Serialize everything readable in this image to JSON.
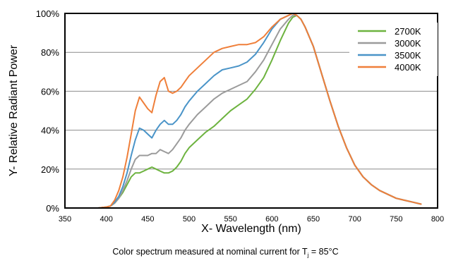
{
  "chart_data": {
    "type": "line",
    "xlabel": "X- Wavelength (nm)",
    "ylabel": "Y- Relative Radiant Power",
    "xlim": [
      350,
      800
    ],
    "ylim": [
      0,
      100
    ],
    "x_ticks": [
      "350",
      "400",
      "450",
      "500",
      "550",
      "600",
      "650",
      "700",
      "750",
      "800"
    ],
    "y_ticks": [
      "0%",
      "20%",
      "40%",
      "60%",
      "80%",
      "100%"
    ],
    "grid": "horizontal",
    "legend_position": "top-right",
    "series": [
      {
        "name": "2700K",
        "color": "#6db33f",
        "x": [
          380,
          390,
          400,
          405,
          410,
          415,
          420,
          425,
          430,
          435,
          440,
          445,
          450,
          455,
          460,
          465,
          470,
          475,
          480,
          485,
          490,
          495,
          500,
          510,
          520,
          530,
          540,
          550,
          560,
          570,
          580,
          590,
          600,
          610,
          620,
          625,
          630,
          635,
          640,
          650,
          660,
          670,
          680,
          690,
          700,
          710,
          720,
          730,
          740,
          750,
          760,
          770,
          780
        ],
        "y": [
          0,
          0,
          0.5,
          1,
          2.5,
          5,
          8,
          12,
          16,
          18,
          18,
          19,
          20,
          21,
          20,
          19,
          18,
          18,
          19,
          21,
          24,
          28,
          31,
          35,
          39,
          42,
          46,
          50,
          53,
          56,
          61,
          67,
          76,
          86,
          95,
          98,
          99,
          97,
          93,
          83,
          69,
          55,
          42,
          31,
          22,
          16,
          12,
          9,
          7,
          5,
          4,
          3,
          2
        ]
      },
      {
        "name": "3000K",
        "color": "#9b9b9b",
        "x": [
          380,
          390,
          400,
          405,
          410,
          415,
          420,
          425,
          430,
          435,
          440,
          445,
          450,
          455,
          460,
          465,
          470,
          475,
          480,
          485,
          490,
          495,
          500,
          510,
          520,
          530,
          540,
          550,
          560,
          570,
          580,
          590,
          600,
          610,
          620,
          625,
          630,
          635,
          640,
          650,
          660,
          670,
          680,
          690,
          700,
          710,
          720,
          730,
          740,
          750,
          760,
          770,
          780
        ],
        "y": [
          0,
          0,
          0.5,
          1,
          2.5,
          5,
          9,
          14,
          20,
          25,
          27,
          27,
          27,
          28,
          28,
          30,
          29,
          28,
          30,
          33,
          36,
          40,
          43,
          48,
          52,
          56,
          59,
          61,
          63,
          65,
          70,
          76,
          84,
          92,
          97,
          99,
          99,
          97,
          93,
          83,
          69,
          55,
          42,
          31,
          22,
          16,
          12,
          9,
          7,
          5,
          4,
          3,
          2
        ]
      },
      {
        "name": "3500K",
        "color": "#4a94c8",
        "x": [
          380,
          390,
          400,
          405,
          410,
          415,
          420,
          425,
          430,
          435,
          440,
          445,
          450,
          455,
          460,
          465,
          470,
          475,
          480,
          485,
          490,
          495,
          500,
          510,
          520,
          530,
          540,
          550,
          560,
          570,
          580,
          590,
          600,
          610,
          620,
          625,
          630,
          635,
          640,
          650,
          660,
          670,
          680,
          690,
          700,
          710,
          720,
          730,
          740,
          750,
          760,
          770,
          780
        ],
        "y": [
          0,
          0,
          0.5,
          1,
          3,
          6,
          11,
          18,
          27,
          35,
          41,
          40,
          38,
          36,
          40,
          43,
          45,
          43,
          43,
          45,
          48,
          52,
          55,
          60,
          64,
          68,
          71,
          72,
          73,
          75,
          79,
          85,
          92,
          97,
          99,
          100,
          99,
          97,
          93,
          83,
          69,
          55,
          42,
          31,
          22,
          16,
          12,
          9,
          7,
          5,
          4,
          3,
          2
        ]
      },
      {
        "name": "4000K",
        "color": "#ef7f3a",
        "x": [
          380,
          390,
          400,
          405,
          410,
          415,
          420,
          425,
          430,
          435,
          440,
          445,
          450,
          455,
          460,
          465,
          470,
          475,
          480,
          485,
          490,
          495,
          500,
          510,
          520,
          530,
          540,
          550,
          560,
          570,
          580,
          590,
          600,
          610,
          620,
          625,
          630,
          635,
          640,
          650,
          660,
          670,
          680,
          690,
          700,
          710,
          720,
          730,
          740,
          750,
          760,
          770,
          780
        ],
        "y": [
          0,
          0,
          0.5,
          1,
          4,
          9,
          16,
          26,
          38,
          50,
          57,
          54,
          51,
          49,
          58,
          65,
          67,
          60,
          59,
          60,
          62,
          65,
          68,
          72,
          76,
          80,
          82,
          83,
          84,
          84,
          85,
          88,
          93,
          97,
          99,
          100,
          99,
          97,
          93,
          83,
          69,
          55,
          42,
          31,
          22,
          16,
          12,
          9,
          7,
          5,
          4,
          3,
          2
        ]
      }
    ]
  },
  "caption": {
    "prefix": "Color spectrum measured at nominal current for T",
    "subscript": "j",
    "suffix": " = 85°C"
  }
}
